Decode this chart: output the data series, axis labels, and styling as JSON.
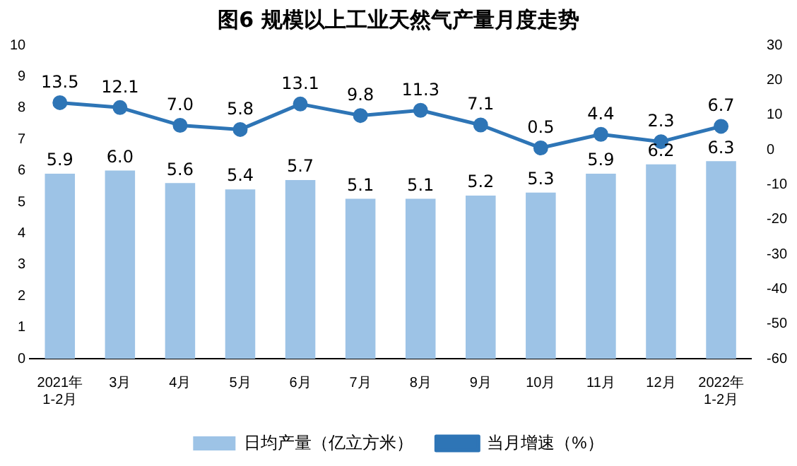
{
  "chart_data": {
    "type": "bar",
    "title": "图6 规模以上工业天然气产量月度走势",
    "categories": [
      "2021年\n1-2月",
      "3月",
      "4月",
      "5月",
      "6月",
      "7月",
      "8月",
      "9月",
      "10月",
      "11月",
      "12月",
      "2022年\n1-2月"
    ],
    "series": [
      {
        "name": "日均产量（亿立方米）",
        "color": "#9dc3e6",
        "values": [
          5.9,
          6.0,
          5.6,
          5.4,
          5.7,
          5.1,
          5.1,
          5.2,
          5.3,
          5.9,
          6.2,
          6.3
        ],
        "value_labels": [
          "5.9",
          "6.0",
          "5.6",
          "5.4",
          "5.7",
          "5.1",
          "5.1",
          "5.2",
          "5.3",
          "5.9",
          "6.2",
          "6.3"
        ]
      },
      {
        "name": "当月增速（%）",
        "type": "line",
        "axis": "y2",
        "color": "#2e75b6",
        "values": [
          13.5,
          12.1,
          7.0,
          5.8,
          13.1,
          9.8,
          11.3,
          7.1,
          0.5,
          4.4,
          2.3,
          6.7
        ],
        "value_labels": [
          "13.5",
          "12.1",
          "7.0",
          "5.8",
          "13.1",
          "9.8",
          "11.3",
          "7.1",
          "0.5",
          "4.4",
          "2.3",
          "6.7"
        ]
      }
    ],
    "ylim": [
      0,
      10
    ],
    "yticks": [
      0,
      1,
      2,
      3,
      4,
      5,
      6,
      7,
      8,
      9,
      10
    ],
    "y2lim": [
      -60,
      30
    ],
    "y2ticks": [
      -60,
      -50,
      -40,
      -30,
      -20,
      -10,
      0,
      10,
      20,
      30
    ],
    "grid": false,
    "legend": "bottom",
    "marker": "circle",
    "line_style": "solid"
  }
}
